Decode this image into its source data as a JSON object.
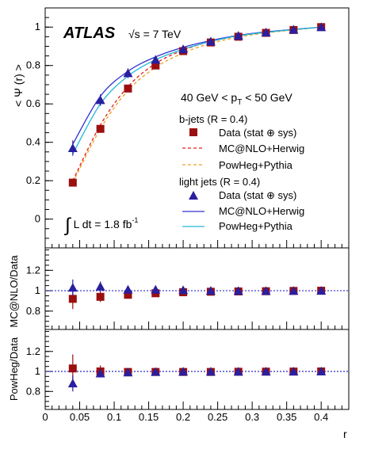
{
  "chart_data": [
    {
      "type": "line",
      "panel": "main",
      "ylabel": "< Ψ (r) >",
      "xlim": [
        0,
        0.44
      ],
      "ylim": [
        -0.15,
        1.1
      ],
      "yticks": [
        "0",
        "0.2",
        "0.4",
        "0.6",
        "0.8",
        "1"
      ],
      "experiment": "ATLAS",
      "energy": "√s = 7 TeV",
      "pt_range": "40 GeV < p_T < 50 GeV",
      "luminosity": "∫ L dt = 1.8 fb⁻¹",
      "legend": {
        "bjets_header": "b-jets (R = 0.4)",
        "bjets_data": "Data (stat ⊕ sys)",
        "bjets_mcnlo": "MC@NLO+Herwig",
        "bjets_powheg": "PowHeg+Pythia",
        "light_header": "light jets (R = 0.4)",
        "light_data": "Data (stat ⊕ sys)",
        "light_mcnlo": "MC@NLO+Herwig",
        "light_powheg": "PowHeg+Pythia"
      },
      "x": [
        0.04,
        0.08,
        0.12,
        0.16,
        0.2,
        0.24,
        0.28,
        0.32,
        0.36,
        0.4
      ],
      "series": [
        {
          "name": "b-jets Data (stat ⊕ sys)",
          "style": "square",
          "color": "#9b0f0f",
          "values": [
            0.19,
            0.47,
            0.68,
            0.8,
            0.875,
            0.92,
            0.95,
            0.97,
            0.985,
            1.0
          ],
          "errors": [
            0.02,
            0.02,
            0.02,
            0.015,
            0.012,
            0.01,
            0.008,
            0.006,
            0.004,
            0.0
          ]
        },
        {
          "name": "light jets Data (stat ⊕ sys)",
          "style": "triangle",
          "color": "#2a1f9e",
          "values": [
            0.37,
            0.62,
            0.76,
            0.83,
            0.885,
            0.925,
            0.955,
            0.972,
            0.987,
            1.0
          ],
          "errors": [
            0.04,
            0.03,
            0.025,
            0.02,
            0.015,
            0.012,
            0.01,
            0.007,
            0.004,
            0.0
          ]
        },
        {
          "name": "b-jets MC@NLO+Herwig",
          "style": "dashed",
          "color": "#e02020",
          "values": [
            0.2,
            0.49,
            0.69,
            0.81,
            0.88,
            0.925,
            0.955,
            0.972,
            0.987,
            1.0
          ]
        },
        {
          "name": "b-jets PowHeg+Pythia",
          "style": "dashed",
          "color": "#f0a020",
          "values": [
            0.19,
            0.47,
            0.67,
            0.79,
            0.865,
            0.915,
            0.948,
            0.97,
            0.985,
            1.0
          ]
        },
        {
          "name": "light jets MC@NLO+Herwig",
          "style": "solid",
          "color": "#3030d0",
          "values": [
            0.39,
            0.64,
            0.77,
            0.845,
            0.895,
            0.93,
            0.957,
            0.975,
            0.988,
            1.0
          ]
        },
        {
          "name": "light jets PowHeg+Pythia",
          "style": "solid",
          "color": "#20b8d8",
          "values": [
            0.34,
            0.6,
            0.745,
            0.83,
            0.885,
            0.925,
            0.955,
            0.973,
            0.987,
            1.0
          ]
        }
      ]
    },
    {
      "type": "scatter",
      "panel": "ratio-mcnlo",
      "ylabel": "MC@NLO/Data",
      "ylim": [
        0.62,
        1.42
      ],
      "yticks": [
        "0.8",
        "1",
        "1.2"
      ],
      "x": [
        0.04,
        0.08,
        0.12,
        0.16,
        0.2,
        0.24,
        0.28,
        0.32,
        0.36,
        0.4
      ],
      "series": [
        {
          "name": "b-jets",
          "style": "square",
          "color": "#9b0f0f",
          "values": [
            0.92,
            0.94,
            0.96,
            0.975,
            0.985,
            0.99,
            0.993,
            0.995,
            0.998,
            1.0
          ],
          "errors": [
            0.1,
            0.05,
            0.03,
            0.02,
            0.015,
            0.01,
            0.008,
            0.006,
            0.004,
            0.0
          ]
        },
        {
          "name": "light jets",
          "style": "triangle",
          "color": "#2a1f9e",
          "values": [
            1.03,
            1.04,
            1.01,
            1.01,
            1.005,
            1.0,
            0.998,
            0.998,
            0.999,
            1.0
          ],
          "errors": [
            0.08,
            0.05,
            0.03,
            0.02,
            0.015,
            0.01,
            0.008,
            0.006,
            0.004,
            0.0
          ]
        }
      ]
    },
    {
      "type": "scatter",
      "panel": "ratio-powheg",
      "ylabel": "PowHeg/Data",
      "xlabel": "r",
      "ylim": [
        0.62,
        1.42
      ],
      "yticks": [
        "0.8",
        "1",
        "1.2"
      ],
      "xticks": [
        "0",
        "0.05",
        "0.1",
        "0.15",
        "0.2",
        "0.25",
        "0.3",
        "0.35",
        "0.4"
      ],
      "x": [
        0.04,
        0.08,
        0.12,
        0.16,
        0.2,
        0.24,
        0.28,
        0.32,
        0.36,
        0.4
      ],
      "series": [
        {
          "name": "b-jets",
          "style": "square",
          "color": "#9b0f0f",
          "values": [
            1.03,
            1.0,
            0.995,
            0.995,
            0.995,
            0.995,
            0.997,
            0.998,
            0.999,
            1.0
          ],
          "errors": [
            0.14,
            0.06,
            0.03,
            0.02,
            0.015,
            0.01,
            0.008,
            0.006,
            0.004,
            0.0
          ]
        },
        {
          "name": "light jets",
          "style": "triangle",
          "color": "#2a1f9e",
          "values": [
            0.88,
            0.98,
            0.99,
            0.995,
            0.998,
            0.998,
            0.998,
            0.999,
            0.999,
            1.0
          ],
          "errors": [
            0.08,
            0.04,
            0.025,
            0.02,
            0.015,
            0.01,
            0.008,
            0.006,
            0.004,
            0.0
          ]
        }
      ]
    }
  ]
}
